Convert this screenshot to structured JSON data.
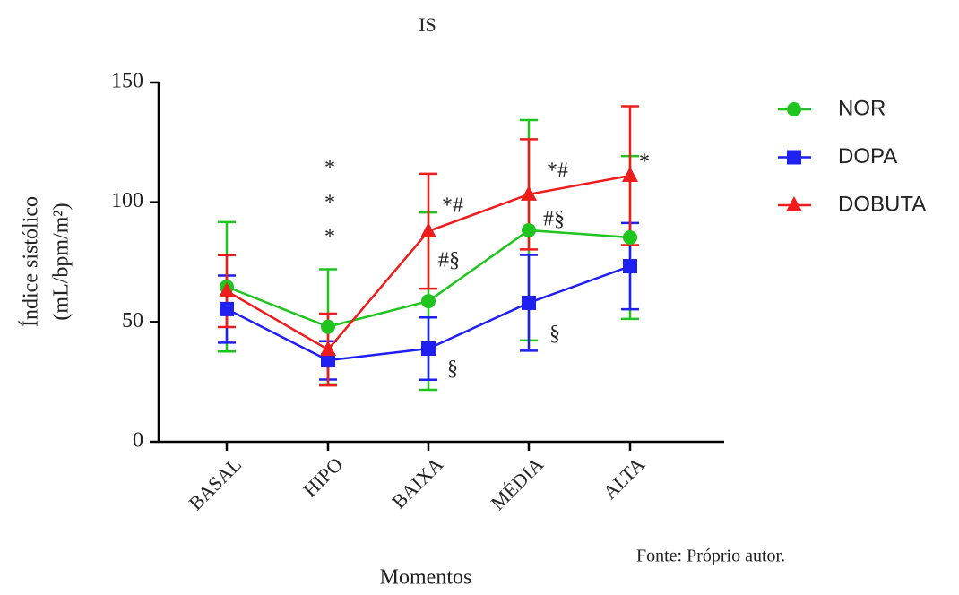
{
  "chart_data": {
    "type": "line",
    "title": "IS",
    "categories": [
      "BASAL",
      "HIPO",
      "BAIXA",
      "MÉDIA",
      "ALTA"
    ],
    "xlabel": "Momentos",
    "ylabel": [
      "Índice sistólico",
      "(mL/bpm/m²)"
    ],
    "ylim": [
      0,
      150
    ],
    "yticks": [
      0,
      50,
      100,
      150
    ],
    "legend": "right",
    "series": [
      {
        "name": "NOR",
        "color": "#1fc41f",
        "marker": "circle",
        "values": [
          64.7,
          48,
          58.7,
          88.3,
          85.3
        ],
        "errors": [
          27,
          24,
          37,
          46,
          34
        ]
      },
      {
        "name": "DOPA",
        "color": "#1f1ff0",
        "marker": "square",
        "values": [
          55.4,
          34,
          38.9,
          58,
          73.3
        ],
        "errors": [
          14,
          8,
          13,
          20,
          18
        ]
      },
      {
        "name": "DOBUTA",
        "color": "#ee1c1c",
        "marker": "triangle",
        "values": [
          62.9,
          38.5,
          87.9,
          103.3,
          111.1
        ],
        "errors": [
          15,
          15,
          24,
          23,
          29
        ]
      }
    ],
    "annotations": [
      "*",
      "*",
      "*",
      "*#",
      "#§",
      "§",
      "*#",
      "#§",
      "§",
      "*"
    ],
    "source": "Fonte: Próprio autor."
  }
}
